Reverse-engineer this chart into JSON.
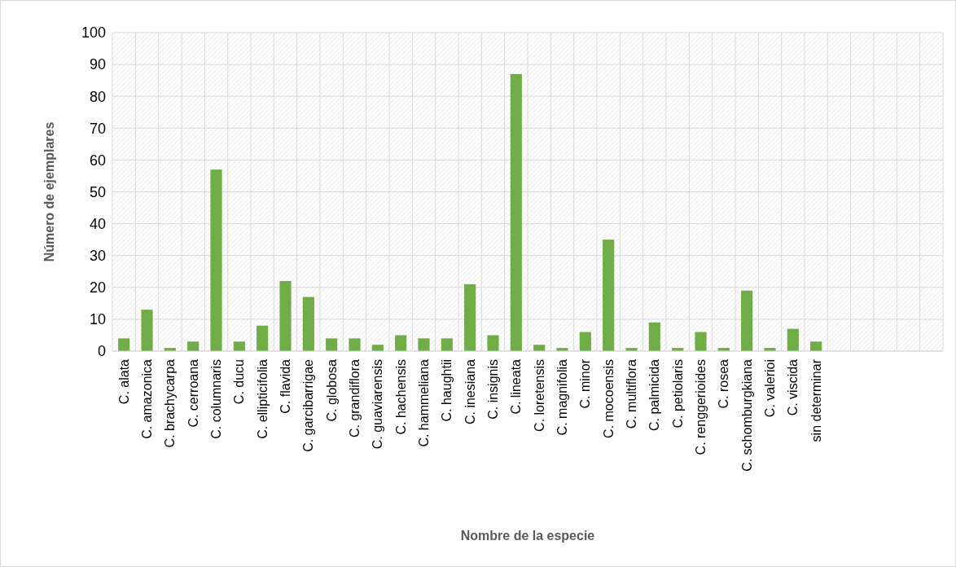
{
  "chart_data": {
    "type": "bar",
    "xlabel": "Nombre de la especie",
    "ylabel": "Número de ejemplares",
    "categories": [
      "C. alata",
      "C. amazonica",
      "C. brachycarpa",
      "C. cerroana",
      "C. columnaris",
      "C. ducu",
      "C. ellipticifolia",
      "C. flavida",
      "C. garcibarrigae",
      "C. globosa",
      "C. grandiflora",
      "C. guaviarensis",
      "C. hachensis",
      "C. hammeliana",
      "C. haughtii",
      "C. inesiana",
      "C. insignis",
      "C. lineata",
      "C. loretensis",
      "C. magnifolia",
      "C. minor",
      "C. mocoensis",
      "C. multiflora",
      "C. palmicida",
      "C. petiolaris",
      "C. renggerioides",
      "C. rosea",
      "C. schomburgkiana",
      "C. valerioi",
      "C. viscida",
      "sin determinar",
      null,
      null,
      null,
      null,
      null
    ],
    "values": [
      4,
      13,
      1,
      3,
      57,
      3,
      8,
      22,
      17,
      4,
      4,
      2,
      5,
      4,
      4,
      21,
      5,
      87,
      2,
      1,
      6,
      35,
      1,
      9,
      1,
      6,
      1,
      19,
      1,
      7,
      3,
      null,
      null,
      null,
      null,
      null
    ],
    "color": "#70ad47",
    "ylim": [
      0,
      100
    ],
    "yticks": [
      0,
      10,
      20,
      30,
      40,
      50,
      60,
      70,
      80,
      90,
      100
    ],
    "grid": true
  }
}
